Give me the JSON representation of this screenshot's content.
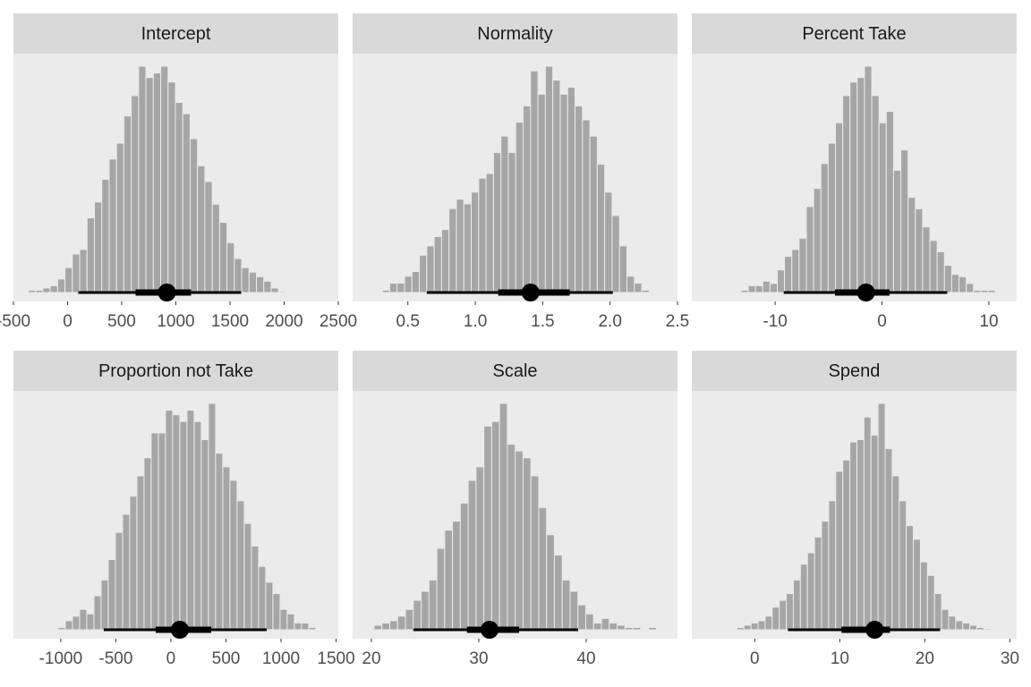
{
  "chart_data": [
    {
      "type": "histogram",
      "title": "Intercept",
      "color": "#a6a6a6",
      "bins": [
        -364,
        -296,
        -228,
        -160,
        -92,
        -24,
        44,
        112,
        180,
        248,
        316,
        384,
        452,
        520,
        588,
        656,
        724,
        792,
        860,
        928,
        996,
        1064,
        1132,
        1200,
        1268,
        1336,
        1404,
        1472,
        1540,
        1608,
        1676,
        1744,
        1812,
        1880,
        1948,
        2016
      ],
      "counts": [
        1,
        1,
        2,
        3,
        6,
        11,
        17,
        19,
        33,
        40,
        50,
        59,
        66,
        78,
        87,
        100,
        95,
        97,
        100,
        93,
        84,
        79,
        68,
        56,
        49,
        39,
        31,
        22,
        15,
        11,
        9,
        7,
        5,
        2,
        0.5
      ],
      "xlim": [
        -500,
        2500
      ],
      "xticks": [
        -500,
        0,
        500,
        1000,
        1500,
        2000,
        2500
      ],
      "interval": {
        "median": 917,
        "inner": [
          628,
          1140
        ],
        "outer": [
          99,
          1603
        ]
      }
    },
    {
      "type": "histogram",
      "title": "Normality",
      "color": "#a6a6a6",
      "bins": [
        0.31,
        0.365,
        0.42,
        0.475,
        0.53,
        0.585,
        0.64,
        0.695,
        0.75,
        0.805,
        0.86,
        0.915,
        0.97,
        1.025,
        1.08,
        1.135,
        1.19,
        1.245,
        1.3,
        1.355,
        1.41,
        1.465,
        1.52,
        1.575,
        1.63,
        1.685,
        1.74,
        1.795,
        1.85,
        1.905,
        1.96,
        2.015,
        2.07,
        2.125,
        2.18,
        2.235,
        2.29
      ],
      "counts": [
        1,
        4,
        4,
        7,
        9,
        16,
        20,
        24,
        27,
        36,
        40,
        38,
        43,
        49,
        51,
        60,
        67,
        60,
        73,
        80,
        95,
        85,
        97,
        91,
        85,
        88,
        80,
        74,
        67,
        55,
        43,
        33,
        20,
        7,
        4,
        1
      ],
      "xlim": [
        0.09,
        2.5
      ],
      "xticks": [
        0.5,
        {
          "value": 1,
          "label": "1.0"
        },
        1.5,
        {
          "value": 2,
          "label": "2.0"
        },
        2.5
      ],
      "interval": {
        "median": 1.41,
        "inner": [
          1.17,
          1.7
        ],
        "outer": [
          0.64,
          2.02
        ]
      }
    },
    {
      "type": "histogram",
      "title": "Percent Take",
      "color": "#a6a6a6",
      "bins": [
        -13.2,
        -12.52,
        -11.84,
        -11.16,
        -10.48,
        -9.8,
        -9.12,
        -8.44,
        -7.76,
        -7.08,
        -6.4,
        -5.72,
        -5.04,
        -4.36,
        -3.68,
        -3,
        -2.32,
        -1.64,
        -0.96,
        -0.28,
        0.4,
        1.08,
        1.76,
        2.44,
        3.12,
        3.8,
        4.48,
        5.16,
        5.84,
        6.52,
        7.2,
        7.88,
        8.56,
        9.24,
        9.92,
        10.6
      ],
      "counts": [
        1,
        3,
        3,
        5,
        4,
        10,
        16,
        19,
        24,
        38,
        46,
        57,
        66,
        75,
        87,
        93,
        95,
        100,
        87,
        75,
        80,
        54,
        63,
        42,
        37,
        29,
        23,
        18,
        12,
        8,
        7,
        4,
        1,
        1,
        1
      ],
      "xlim": [
        -17.8,
        12.6
      ],
      "xticks": [
        -10,
        0,
        10
      ],
      "interval": {
        "median": -1.5,
        "inner": [
          -4.4,
          0.7
        ],
        "outer": [
          -9.2,
          6.1
        ]
      }
    },
    {
      "type": "histogram",
      "title": "Proportion not Take",
      "color": "#a6a6a6",
      "bins": [
        -1024,
        -959,
        -894,
        -829,
        -764,
        -699,
        -634,
        -569,
        -504,
        -439,
        -374,
        -309,
        -244,
        -179,
        -114,
        -49,
        16,
        81,
        146,
        211,
        276,
        341,
        406,
        471,
        536,
        601,
        666,
        731,
        796,
        861,
        926,
        991,
        1056,
        1121,
        1186,
        1251,
        1316
      ],
      "counts": [
        1,
        4,
        6,
        9,
        7,
        15,
        22,
        31,
        43,
        51,
        59,
        68,
        76,
        87,
        87,
        97,
        95,
        92,
        97,
        92,
        84,
        100,
        78,
        72,
        66,
        57,
        47,
        37,
        28,
        21,
        16,
        9,
        7,
        3,
        3,
        1
      ],
      "xlim": [
        -1430,
        1520
      ],
      "xticks": [
        -1000,
        -500,
        0,
        500,
        1000,
        1500
      ],
      "interval": {
        "median": 81,
        "inner": [
          -138,
          366
        ],
        "outer": [
          -610,
          870
        ]
      }
    },
    {
      "type": "histogram",
      "title": "Scale",
      "color": "#a6a6a6",
      "bins": [
        20.25,
        20.98,
        21.71,
        22.44,
        23.17,
        23.9,
        24.63,
        25.36,
        26.09,
        26.82,
        27.55,
        28.28,
        29.01,
        29.74,
        30.47,
        31.2,
        31.93,
        32.66,
        33.39,
        34.12,
        34.85,
        35.58,
        36.31,
        37.04,
        37.77,
        38.5,
        39.23,
        39.96,
        40.69,
        41.42,
        42.15,
        42.88,
        43.61,
        44.34,
        45.07,
        45.8,
        46.53
      ],
      "counts": [
        2,
        3,
        4,
        6,
        9,
        13,
        17,
        22,
        36,
        44,
        48,
        56,
        66,
        72,
        90,
        92,
        100,
        82,
        79,
        76,
        68,
        54,
        42,
        33,
        22,
        17,
        11,
        7,
        3,
        5,
        3,
        2,
        1,
        1,
        0,
        1
      ],
      "xlim": [
        18.25,
        48.5
      ],
      "xticks": [
        20,
        30,
        40
      ],
      "interval": {
        "median": 31,
        "inner": [
          28.9,
          33.75
        ],
        "outer": [
          23.9,
          39.25
        ]
      }
    },
    {
      "type": "histogram",
      "title": "Spend",
      "color": "#a6a6a6",
      "bins": [
        -2.1,
        -1.27,
        -0.44,
        0.39,
        1.22,
        2.05,
        2.88,
        3.71,
        4.54,
        5.37,
        6.2,
        7.03,
        7.86,
        8.69,
        9.52,
        10.35,
        11.18,
        12.01,
        12.84,
        13.67,
        14.5,
        15.33,
        16.16,
        16.99,
        17.82,
        18.65,
        19.48,
        20.31,
        21.14,
        21.97,
        22.8,
        23.63,
        24.46,
        25.29,
        26.12,
        26.95,
        27.78
      ],
      "counts": [
        1,
        2,
        3,
        4,
        6,
        10,
        13,
        16,
        22,
        29,
        34,
        41,
        48,
        57,
        70,
        75,
        83,
        84,
        94,
        86,
        100,
        80,
        68,
        57,
        46,
        40,
        30,
        24,
        16,
        9,
        6,
        4,
        3,
        2,
        1,
        0.5
      ],
      "xlim": [
        -7.4,
        30.8
      ],
      "xticks": [
        0,
        10,
        20,
        30
      ],
      "interval": {
        "median": 14.1,
        "inner": [
          10.2,
          15.9
        ],
        "outer": [
          3.9,
          21.8
        ]
      }
    }
  ]
}
